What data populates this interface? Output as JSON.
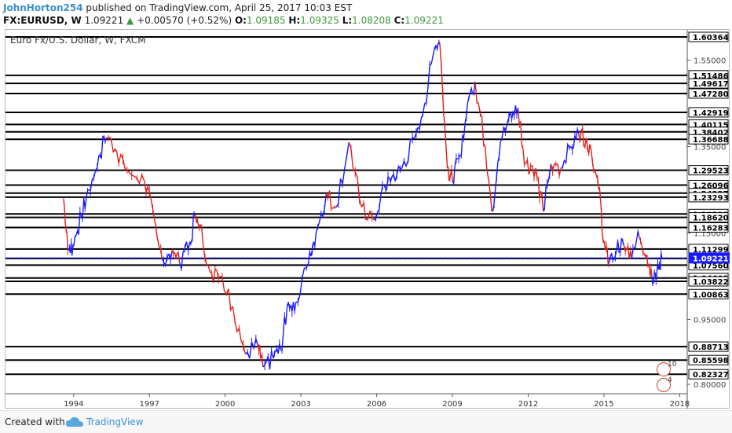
{
  "header": {
    "author": "JohnHorton254",
    "published": "published on TradingView.com, April 25, 2017 10:03 EST",
    "symbol": "FX:EURUSD, W",
    "last": "1.09221",
    "change_arrow": "▲",
    "change": "+0.00570 (+0.52%)",
    "o_label": "O:",
    "o": "1.09185",
    "h_label": "H:",
    "h": "1.09325",
    "l_label": "L:",
    "l": "1.08208",
    "c_label": "C:",
    "c": "1.09221"
  },
  "chart_title": "Euro Fx/U.S. Dollar, W, FXCM",
  "footer": {
    "created_with": "Created with",
    "brand": "TradingView"
  },
  "badges": {
    "top": "10",
    "bottom": "4"
  },
  "colors": {
    "up": "#1a1aff",
    "down": "#e0201a",
    "price_line": "#1a1aff",
    "level": "#000000"
  },
  "chart_data": {
    "type": "line",
    "title": "Euro Fx/U.S. Dollar, W, FXCM",
    "x_range": [
      1991.3,
      2018.3
    ],
    "y_range": [
      0.78,
      1.62
    ],
    "x_ticks": [
      1994,
      1997,
      2000,
      2003,
      2006,
      2009,
      2012,
      2015,
      2018
    ],
    "y_tick_labels": [
      1.55,
      1.35,
      1.15,
      0.95,
      0.8
    ],
    "level_lines": [
      1.60364,
      1.51486,
      1.49617,
      1.4728,
      1.42919,
      1.40115,
      1.38402,
      1.36688,
      1.29523,
      1.26096,
      1.24227,
      1.23293,
      1.19398,
      1.1862,
      1.16283,
      1.11299,
      1.09118,
      1.0756,
      1.04601,
      1.03822,
      1.00863,
      0.88713,
      0.85598,
      0.82327
    ],
    "current_price": 1.09221,
    "series": [
      {
        "x": [
          1993.6,
          1993.8,
          1994.0,
          1994.3,
          1994.6,
          1995.0,
          1995.3,
          1995.7,
          1996.2,
          1996.8,
          1997.2,
          1997.5,
          1997.9,
          1998.2,
          1998.6,
          1998.8,
          1999.0,
          1999.4,
          1999.8,
          2000.3,
          2000.8,
          2001.3,
          2001.5,
          2001.9,
          2002.2,
          2002.5,
          2002.8,
          2003.3,
          2003.6,
          2004.0,
          2004.4,
          2004.9,
          2005.4,
          2005.9,
          2006.3,
          2006.6,
          2007.0,
          2007.5,
          2007.9,
          2008.3,
          2008.5,
          2008.8,
          2009.0,
          2009.3,
          2009.6,
          2009.9,
          2010.3,
          2010.6,
          2010.9,
          2011.3,
          2011.6,
          2011.9,
          2012.3,
          2012.6,
          2012.9,
          2013.3,
          2013.7,
          2014.0,
          2014.3,
          2014.5,
          2014.8,
          2015.0,
          2015.2,
          2015.5,
          2015.8,
          2016.1,
          2016.4,
          2016.7,
          2016.9,
          2017.1,
          2017.3
        ],
        "y": [
          1.23,
          1.11,
          1.12,
          1.19,
          1.25,
          1.33,
          1.37,
          1.34,
          1.29,
          1.27,
          1.18,
          1.09,
          1.11,
          1.08,
          1.13,
          1.19,
          1.17,
          1.06,
          1.05,
          0.98,
          0.87,
          0.89,
          0.84,
          0.86,
          0.88,
          0.99,
          0.99,
          1.08,
          1.15,
          1.24,
          1.21,
          1.36,
          1.21,
          1.18,
          1.26,
          1.28,
          1.3,
          1.37,
          1.45,
          1.58,
          1.59,
          1.3,
          1.27,
          1.33,
          1.45,
          1.5,
          1.35,
          1.2,
          1.36,
          1.43,
          1.44,
          1.31,
          1.3,
          1.2,
          1.31,
          1.3,
          1.35,
          1.38,
          1.37,
          1.34,
          1.25,
          1.13,
          1.08,
          1.11,
          1.12,
          1.09,
          1.14,
          1.1,
          1.05,
          1.06,
          1.09
        ]
      }
    ]
  }
}
